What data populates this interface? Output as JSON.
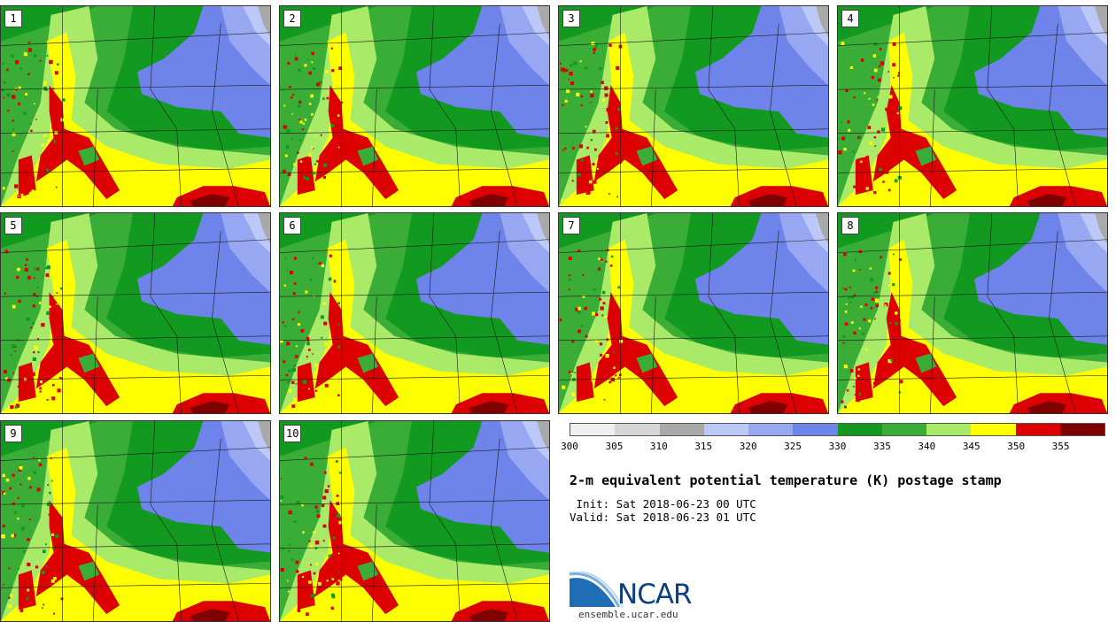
{
  "panels": [
    {
      "label": "1"
    },
    {
      "label": "2"
    },
    {
      "label": "3"
    },
    {
      "label": "4"
    },
    {
      "label": "5"
    },
    {
      "label": "6"
    },
    {
      "label": "7"
    },
    {
      "label": "8"
    },
    {
      "label": "9"
    },
    {
      "label": "10"
    }
  ],
  "colorbar": {
    "colors": [
      "#f0f0f0",
      "#d6d6d6",
      "#a9a9a9",
      "#bcc8f7",
      "#97a7f2",
      "#6f84ea",
      "#129a20",
      "#3aad37",
      "#a9ea68",
      "#ffff00",
      "#dd0000",
      "#800000"
    ],
    "ticks": [
      "300",
      "305",
      "310",
      "315",
      "320",
      "325",
      "330",
      "335",
      "340",
      "345",
      "350",
      "355"
    ]
  },
  "title": "2-m equivalent potential temperature (K) postage stamp",
  "init": " Init: Sat 2018-06-23 00 UTC",
  "valid": "Valid: Sat 2018-06-23 01 UTC",
  "logo": {
    "word": "NCAR",
    "url": "ensemble.ucar.edu",
    "color": "#0a3f82"
  },
  "map_colors": {
    "dark_green": "#129a20",
    "green": "#3aad37",
    "light_green": "#a9ea68",
    "yellow": "#ffff00",
    "red": "#dd0000",
    "dark_red": "#800000",
    "blue": "#6f84ea",
    "light_blue": "#97a7f2",
    "pale_blue": "#bcc8f7",
    "gray": "#a9a9a9"
  }
}
